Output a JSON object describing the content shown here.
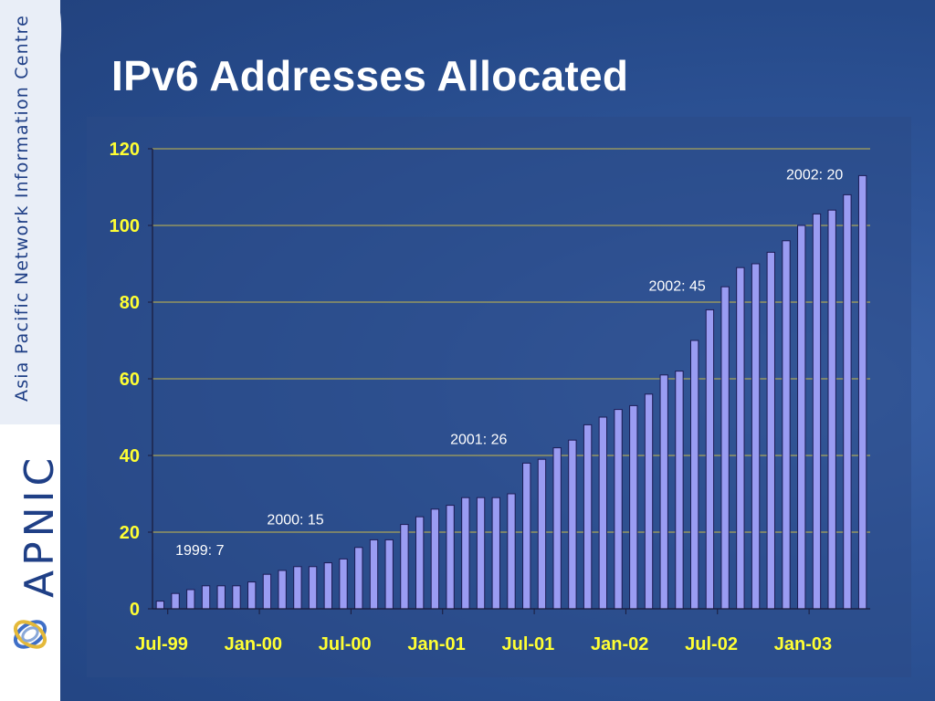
{
  "slide": {
    "title": "IPv6 Addresses Allocated",
    "sidebar_org": "Asia Pacific Network Information Centre",
    "sidebar_logo": "APNIC",
    "colors": {
      "background": "#2b5096",
      "bar_fill": "#9a9cf2",
      "axis_labels": "#ffff33",
      "gridline": "#c8b84a"
    }
  },
  "chart_data": {
    "type": "bar",
    "title": "",
    "xlabel": "",
    "ylabel": "",
    "ylim": [
      0,
      120
    ],
    "yticks": [
      0,
      20,
      40,
      60,
      80,
      100,
      120
    ],
    "ytick_labels": [
      "0",
      "20",
      "40",
      "60",
      "80",
      "100",
      "120"
    ],
    "xtick_labels": [
      "Jul-99",
      "Jan-00",
      "Jul-00",
      "Jan-01",
      "Jul-01",
      "Jan-02",
      "Jul-02",
      "Jan-03"
    ],
    "grid": true,
    "values": [
      2,
      4,
      5,
      6,
      6,
      6,
      7,
      9,
      10,
      11,
      11,
      12,
      13,
      16,
      18,
      18,
      22,
      24,
      26,
      27,
      29,
      29,
      29,
      30,
      38,
      39,
      42,
      44,
      48,
      50,
      52,
      53,
      56,
      61,
      62,
      70,
      78,
      84,
      89,
      90,
      93,
      96,
      100,
      103,
      104,
      108,
      113
    ],
    "annotations": [
      {
        "text": "1999: 7",
        "x": 1,
        "y": 14
      },
      {
        "text": "2000: 15",
        "x": 7,
        "y": 22
      },
      {
        "text": "2001: 26",
        "x": 19,
        "y": 43
      },
      {
        "text": "2002: 45",
        "x": 32,
        "y": 83
      },
      {
        "text": "2002: 20",
        "x": 41,
        "y": 112
      }
    ]
  }
}
